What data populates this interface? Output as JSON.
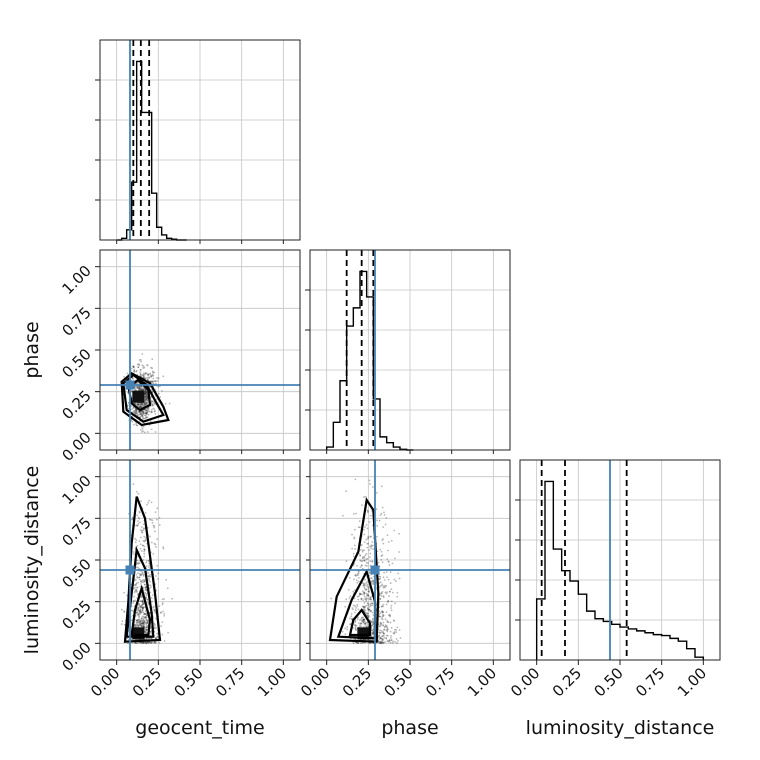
{
  "chart_data": {
    "type": "corner",
    "parameters": [
      "geocent_time",
      "phase",
      "luminosity_distance"
    ],
    "tick_labels": [
      "0.00",
      "0.25",
      "0.50",
      "0.75",
      "1.00"
    ],
    "axis_range": [
      -0.1,
      1.1
    ],
    "grid": true,
    "truths": {
      "geocent_time": 0.08,
      "phase": 0.29,
      "luminosity_distance": 0.44
    },
    "colors": {
      "truth": "#4682b4",
      "hist": "#000000",
      "grid": "#c4c4c4"
    },
    "marginals": {
      "geocent_time": {
        "bin_edges": [
          0.0,
          0.03,
          0.06,
          0.09,
          0.12,
          0.15,
          0.18,
          0.21,
          0.24,
          0.27,
          0.3,
          0.33,
          0.36,
          0.39,
          0.42
        ],
        "counts": [
          0,
          2,
          12,
          68,
          210,
          150,
          150,
          55,
          15,
          6,
          2,
          1,
          0,
          0
        ],
        "quantiles": [
          0.1,
          0.145,
          0.195
        ]
      },
      "phase": {
        "bin_edges": [
          0.0,
          0.04,
          0.08,
          0.12,
          0.16,
          0.2,
          0.24,
          0.28,
          0.32,
          0.36,
          0.4,
          0.44,
          0.48,
          0.52
        ],
        "counts": [
          4,
          38,
          95,
          170,
          195,
          245,
          210,
          70,
          18,
          10,
          4,
          1,
          0
        ],
        "quantiles": [
          0.12,
          0.21,
          0.28
        ]
      },
      "luminosity_distance": {
        "bin_edges": [
          0.0,
          0.05,
          0.1,
          0.15,
          0.2,
          0.25,
          0.3,
          0.35,
          0.4,
          0.45,
          0.5,
          0.55,
          0.6,
          0.65,
          0.7,
          0.75,
          0.8,
          0.85,
          0.9,
          0.95,
          1.0
        ],
        "counts": [
          65,
          190,
          118,
          95,
          84,
          70,
          52,
          44,
          41,
          38,
          35,
          33,
          31,
          29,
          27,
          26,
          23,
          20,
          12,
          3
        ],
        "quantiles": [
          0.03,
          0.17,
          0.54
        ]
      }
    },
    "joint": {
      "phase_vs_geocent_time": {
        "center": [
          0.13,
          0.22
        ],
        "spread": [
          0.05,
          0.09
        ],
        "contours": [
          [
            [
              0.07,
              0.28
            ],
            [
              0.13,
              0.32
            ],
            [
              0.19,
              0.26
            ],
            [
              0.2,
              0.17
            ],
            [
              0.14,
              0.14
            ],
            [
              0.09,
              0.18
            ]
          ],
          [
            [
              0.04,
              0.3
            ],
            [
              0.1,
              0.35
            ],
            [
              0.18,
              0.29
            ],
            [
              0.24,
              0.18
            ],
            [
              0.28,
              0.11
            ],
            [
              0.16,
              0.07
            ],
            [
              0.06,
              0.14
            ]
          ],
          [
            [
              0.03,
              0.31
            ],
            [
              0.09,
              0.36
            ],
            [
              0.2,
              0.3
            ],
            [
              0.28,
              0.16
            ],
            [
              0.31,
              0.08
            ],
            [
              0.15,
              0.05
            ],
            [
              0.04,
              0.13
            ]
          ]
        ]
      },
      "luminosity_distance_vs_geocent_time": {
        "center": [
          0.13,
          0.2
        ],
        "spread": [
          0.06,
          0.28
        ],
        "contours": [
          [
            [
              0.09,
              0.05
            ],
            [
              0.19,
              0.05
            ],
            [
              0.2,
              0.14
            ],
            [
              0.15,
              0.33
            ],
            [
              0.11,
              0.2
            ]
          ],
          [
            [
              0.06,
              0.04
            ],
            [
              0.22,
              0.04
            ],
            [
              0.21,
              0.18
            ],
            [
              0.17,
              0.45
            ],
            [
              0.12,
              0.56
            ],
            [
              0.09,
              0.3
            ]
          ],
          [
            [
              0.05,
              0.01
            ],
            [
              0.26,
              0.02
            ],
            [
              0.23,
              0.3
            ],
            [
              0.17,
              0.75
            ],
            [
              0.12,
              0.88
            ],
            [
              0.09,
              0.6
            ],
            [
              0.07,
              0.25
            ]
          ]
        ]
      },
      "luminosity_distance_vs_phase": {
        "center": [
          0.22,
          0.22
        ],
        "spread": [
          0.09,
          0.28
        ],
        "contours": [
          [
            [
              0.14,
              0.05
            ],
            [
              0.26,
              0.05
            ],
            [
              0.26,
              0.12
            ],
            [
              0.21,
              0.2
            ],
            [
              0.16,
              0.14
            ]
          ],
          [
            [
              0.07,
              0.04
            ],
            [
              0.29,
              0.03
            ],
            [
              0.29,
              0.25
            ],
            [
              0.24,
              0.43
            ],
            [
              0.15,
              0.26
            ]
          ],
          [
            [
              0.02,
              0.02
            ],
            [
              0.3,
              0.01
            ],
            [
              0.31,
              0.3
            ],
            [
              0.28,
              0.8
            ],
            [
              0.24,
              0.86
            ],
            [
              0.19,
              0.55
            ],
            [
              0.06,
              0.28
            ]
          ]
        ]
      }
    }
  }
}
